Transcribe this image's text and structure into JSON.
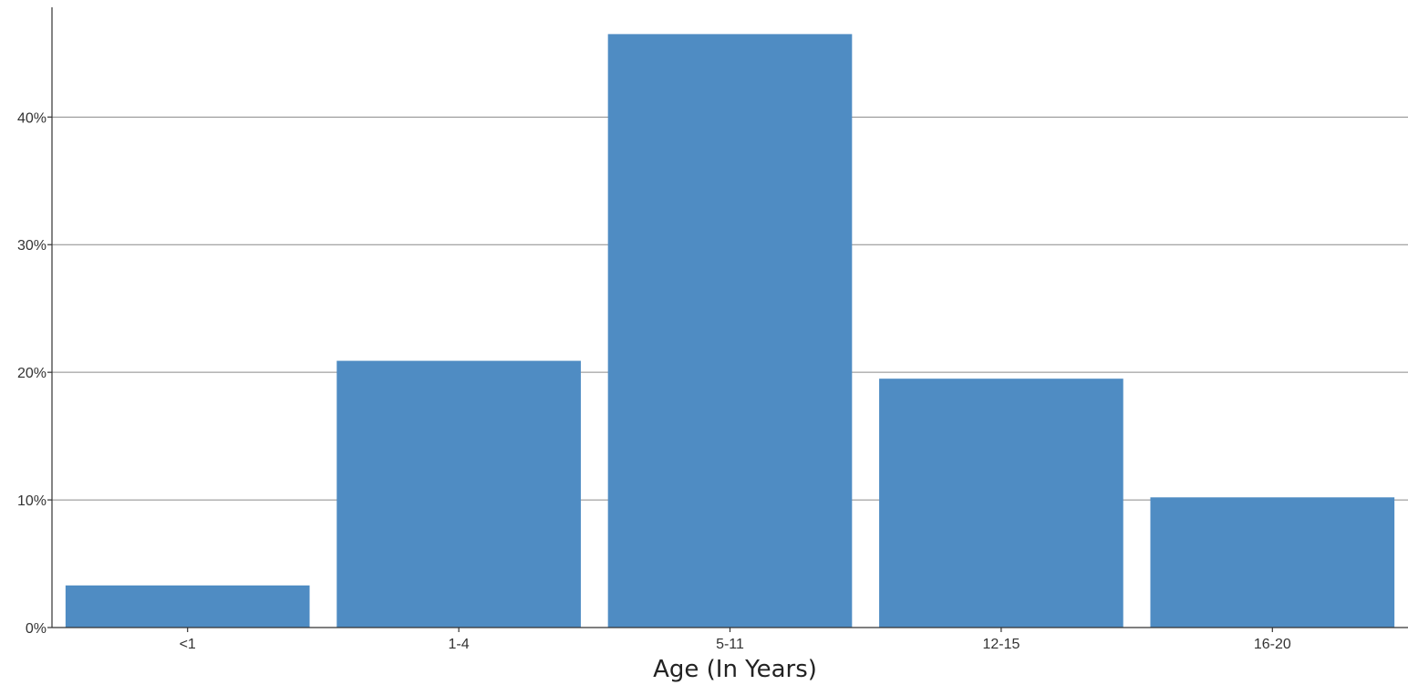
{
  "chart_data": {
    "type": "bar",
    "title": "",
    "xlabel": "Age (In Years)",
    "ylabel": "",
    "categories": [
      "<1",
      "1-4",
      "5-11",
      "12-15",
      "16-20"
    ],
    "values": [
      3.3,
      20.9,
      46.5,
      19.5,
      10.2
    ],
    "ylim": [
      0,
      48.6
    ],
    "yticks": [
      0,
      10,
      20,
      30,
      40
    ],
    "ytick_labels": [
      "0%",
      "10%",
      "20%",
      "30%",
      "40%"
    ],
    "grid": true,
    "legend": "none",
    "bar_color": "#4f8cc3"
  }
}
